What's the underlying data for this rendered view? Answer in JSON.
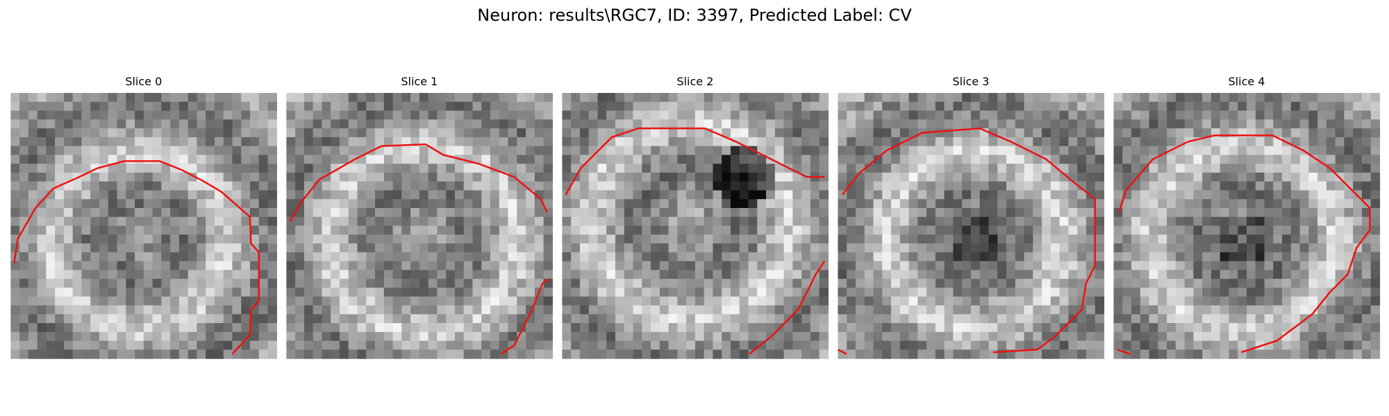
{
  "title": "Neuron: results\\RGC7, ID: 3397, Predicted Label: CV",
  "panels": [
    {
      "title": "Slice 0"
    },
    {
      "title": "Slice 1"
    },
    {
      "title": "Slice 2"
    },
    {
      "title": "Slice 3"
    },
    {
      "title": "Slice 4"
    }
  ]
}
